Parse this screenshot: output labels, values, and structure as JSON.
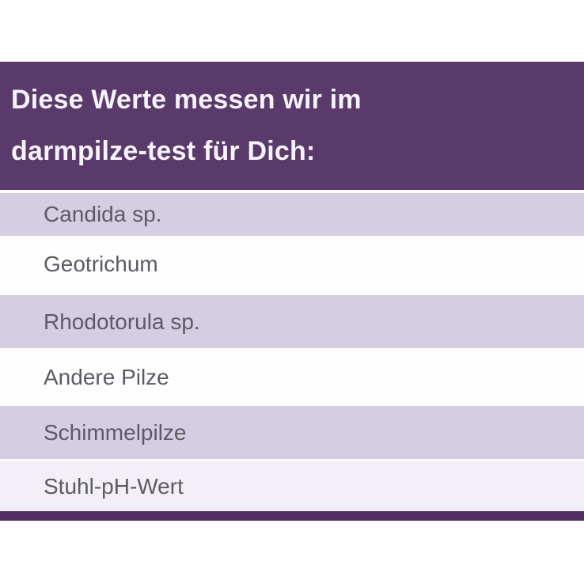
{
  "header": {
    "line1": "Diese Werte messen wir im",
    "line2": "darmpilze-test für Dich:"
  },
  "rows": [
    {
      "label": "Candida sp."
    },
    {
      "label": "Geotrichum"
    },
    {
      "label": "Rhodotorula sp."
    },
    {
      "label": "Andere Pilze"
    },
    {
      "label": "Schimmelpilze"
    },
    {
      "label": "Stuhl-pH-Wert"
    }
  ],
  "colors": {
    "header_bg": "#593a6b",
    "header_text": "#f6f3fa",
    "row_lavender": "#d5cde2",
    "row_white": "#fefefe",
    "row_light": "#f2eff6",
    "row_text": "#5d5a64",
    "divider": "#512f62"
  }
}
